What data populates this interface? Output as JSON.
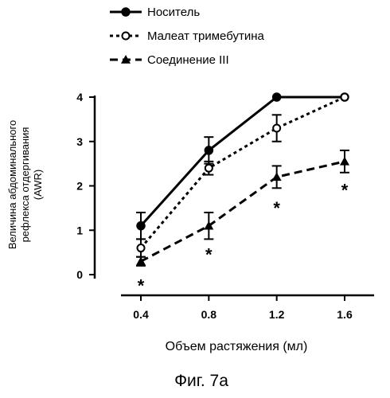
{
  "figure": {
    "caption": "Фиг. 7а"
  },
  "chart_data": {
    "type": "line",
    "xlabel": "Объем растяжения (мл)",
    "ylabel_lines": [
      "Величина абдоминального",
      "рефлекса отдергивания",
      "(AWR)"
    ],
    "x": [
      0.4,
      0.8,
      1.2,
      1.6
    ],
    "x_ticks": [
      "0.4",
      "0.8",
      "1.2",
      "1.6"
    ],
    "y_ticks": [
      "0",
      "1",
      "2",
      "3",
      "4"
    ],
    "ylim": [
      0,
      4
    ],
    "xlim": [
      0.2,
      1.8
    ],
    "grid": false,
    "legend_position": "top-center",
    "series": [
      {
        "name": "Носитель",
        "marker": "filled-circle",
        "line_style": "solid",
        "values": [
          1.1,
          2.8,
          4.0,
          4.0
        ],
        "errors": [
          0.3,
          0.3,
          0.0,
          0.0
        ]
      },
      {
        "name": "Малеат тримебутина",
        "marker": "open-circle",
        "line_style": "dotted",
        "values": [
          0.6,
          2.4,
          3.3,
          4.0
        ],
        "errors": [
          0.2,
          0.15,
          0.3,
          0.0
        ]
      },
      {
        "name": "Соединение III",
        "marker": "filled-triangle",
        "line_style": "dashed",
        "values": [
          0.3,
          1.1,
          2.2,
          2.55
        ],
        "errors": [
          0.1,
          0.3,
          0.25,
          0.25
        ]
      }
    ],
    "annotations": [
      {
        "text": "*",
        "x": 0.4,
        "y": -0.1
      },
      {
        "text": "*",
        "x": 0.8,
        "y": 0.6
      },
      {
        "text": "*",
        "x": 1.2,
        "y": 1.65
      },
      {
        "text": "*",
        "x": 1.6,
        "y": 2.05
      }
    ]
  }
}
